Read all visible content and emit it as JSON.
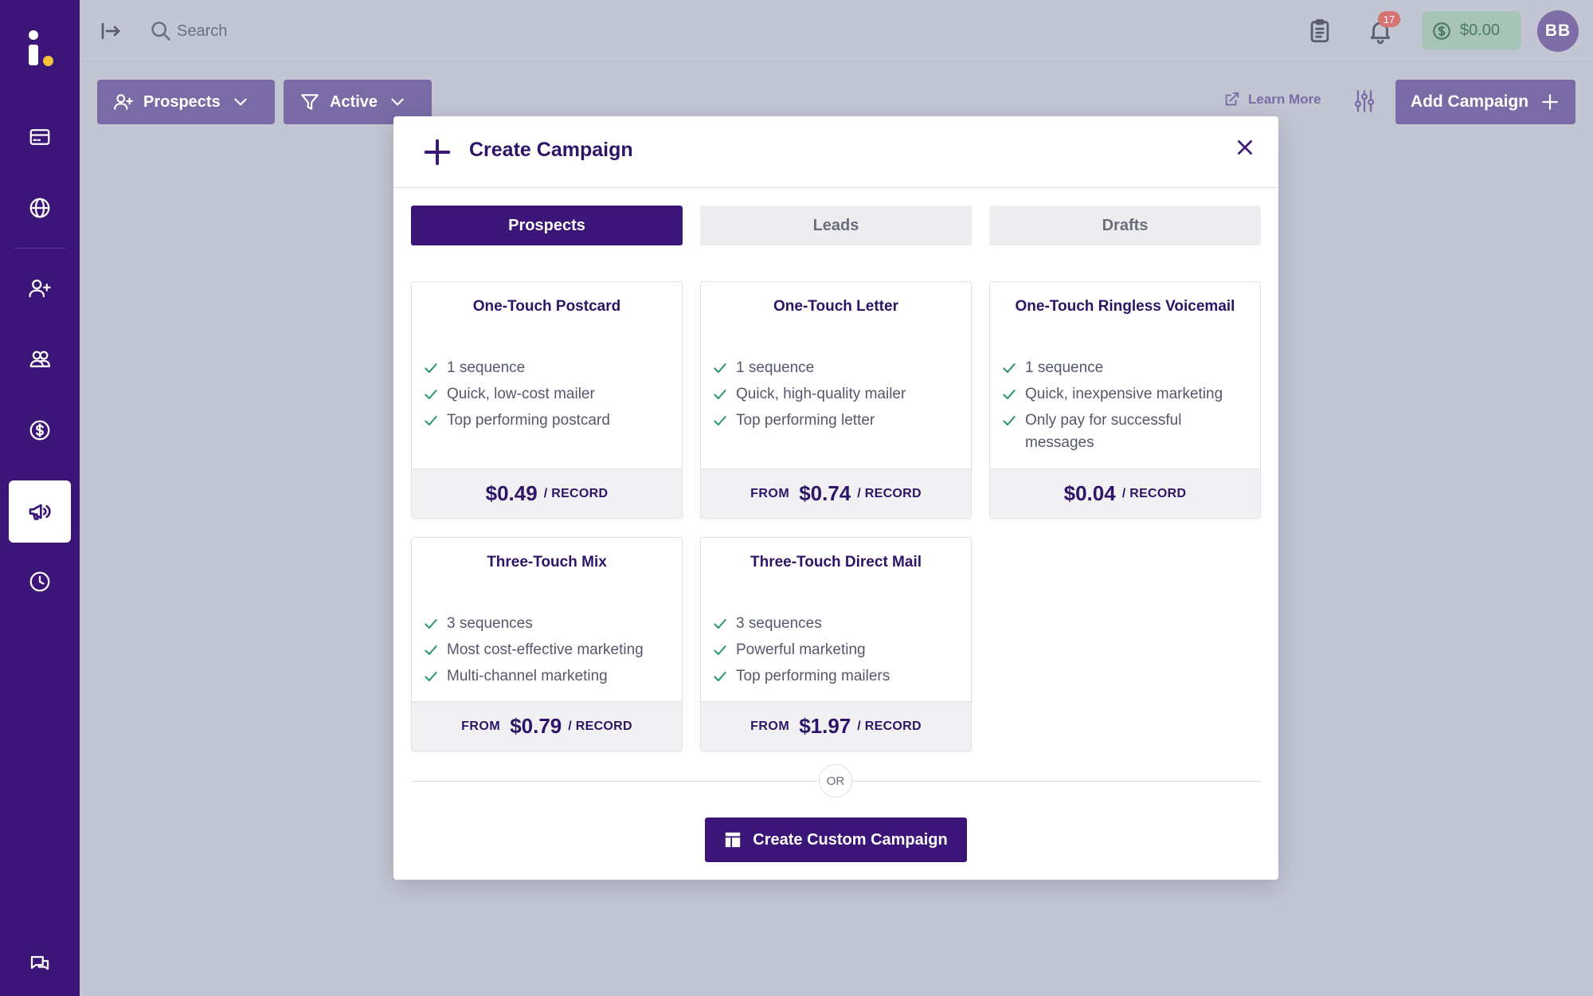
{
  "sidebar": {
    "logo": "i-logo",
    "items": [
      {
        "icon": "credit-card-icon"
      },
      {
        "icon": "globe-icon"
      },
      {
        "icon": "user-plus-icon"
      },
      {
        "icon": "users-icon"
      },
      {
        "icon": "dollar-circle-icon"
      },
      {
        "icon": "megaphone-icon",
        "active": true
      },
      {
        "icon": "clock-icon"
      },
      {
        "icon": "chat-icon"
      }
    ]
  },
  "topbar": {
    "search_placeholder": "Search",
    "notification_count": "17",
    "balance": "$0.00",
    "avatar_initials": "BB"
  },
  "toolbar": {
    "prospects_label": "Prospects",
    "active_label": "Active",
    "learn_more_label": "Learn More",
    "add_campaign_label": "Add Campaign"
  },
  "modal": {
    "title": "Create Campaign",
    "tabs": [
      {
        "label": "Prospects",
        "active": true
      },
      {
        "label": "Leads",
        "active": false
      },
      {
        "label": "Drafts",
        "active": false
      }
    ],
    "cards": [
      {
        "title": "One-Touch Postcard",
        "features": [
          "1 sequence",
          "Quick, low-cost mailer",
          "Top performing postcard"
        ],
        "from": "",
        "price": "$0.49",
        "unit": "/ RECORD"
      },
      {
        "title": "One-Touch Letter",
        "features": [
          "1 sequence",
          "Quick, high-quality mailer",
          "Top performing letter"
        ],
        "from": "FROM",
        "price": "$0.74",
        "unit": "/ RECORD"
      },
      {
        "title": "One-Touch Ringless Voicemail",
        "features": [
          "1 sequence",
          "Quick, inexpensive marketing",
          "Only pay for successful messages"
        ],
        "from": "",
        "price": "$0.04",
        "unit": "/ RECORD"
      },
      {
        "title": "Three-Touch Mix",
        "features": [
          "3 sequences",
          "Most cost-effective marketing",
          "Multi-channel marketing"
        ],
        "from": "FROM",
        "price": "$0.79",
        "unit": "/ RECORD"
      },
      {
        "title": "Three-Touch Direct Mail",
        "features": [
          "3 sequences",
          "Powerful marketing",
          "Top performing mailers"
        ],
        "from": "FROM",
        "price": "$1.97",
        "unit": "/ RECORD"
      }
    ],
    "or_label": "OR",
    "custom_button_label": "Create Custom Campaign"
  },
  "colors": {
    "sidebar": "#3b1577",
    "accent": "#3b1577",
    "check": "#27956a",
    "muted_button": "#7a6ba6"
  }
}
